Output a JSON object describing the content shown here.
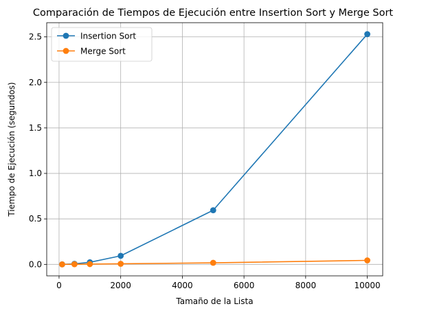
{
  "chart_data": {
    "type": "line",
    "title": "Comparación de Tiempos de Ejecución entre Insertion Sort y Merge Sort",
    "xlabel": "Tamaño de la Lista",
    "ylabel": "Tiempo de Ejecución (segundos)",
    "x": [
      100,
      500,
      1000,
      2000,
      5000,
      10000
    ],
    "xlim": [
      -400,
      10500
    ],
    "ylim": [
      -0.126,
      2.656
    ],
    "xticks": [
      0,
      2000,
      4000,
      6000,
      8000,
      10000
    ],
    "yticks": [
      0.0,
      0.5,
      1.0,
      1.5,
      2.0,
      2.5
    ],
    "xtick_labels": [
      "0",
      "2000",
      "4000",
      "6000",
      "8000",
      "10000"
    ],
    "ytick_labels": [
      "0.0",
      "0.5",
      "1.0",
      "1.5",
      "2.0",
      "2.5"
    ],
    "grid": true,
    "legend_position": "top-left",
    "series": [
      {
        "name": "Insertion Sort",
        "color": "#1f77b4",
        "marker": "circle",
        "values": [
          0.0005,
          0.006,
          0.023,
          0.094,
          0.595,
          2.53
        ]
      },
      {
        "name": "Merge Sort",
        "color": "#ff7f0e",
        "marker": "circle",
        "values": [
          0.0002,
          0.0014,
          0.003,
          0.0065,
          0.0175,
          0.044
        ]
      }
    ]
  }
}
